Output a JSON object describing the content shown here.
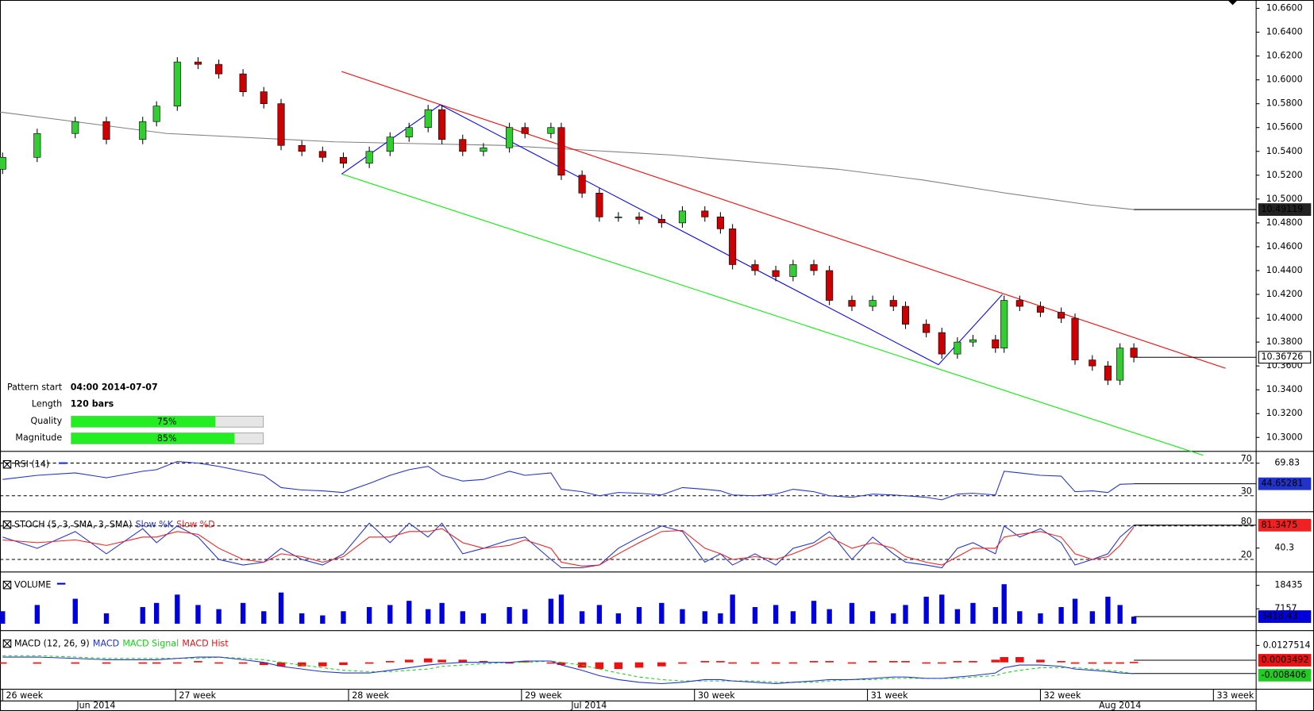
{
  "chart_data": [
    {
      "type": "candlestick",
      "xlim": [
        25.985,
        33.247
      ],
      "xticks": [
        {
          "value": 26,
          "label": "26 week"
        },
        {
          "value": 27,
          "label": "27 week"
        },
        {
          "value": 28,
          "label": "28 week"
        },
        {
          "value": 29,
          "label": "29 week"
        },
        {
          "value": 30,
          "label": "30 week"
        },
        {
          "value": 31,
          "label": "31 week"
        },
        {
          "value": 32,
          "label": "32 week"
        },
        {
          "value": 33,
          "label": "33 week"
        }
      ],
      "months": [
        {
          "value": 26.54,
          "label": "Jun 2014"
        },
        {
          "value": 29.39,
          "label": "Jul 2014"
        },
        {
          "value": 32.46,
          "label": "Aug 2014"
        }
      ],
      "ylim": [
        10.289,
        10.667
      ],
      "yticks": [
        {
          "value": 10.3,
          "label": "10.3000"
        },
        {
          "value": 10.32,
          "label": "10.3200"
        },
        {
          "value": 10.34,
          "label": "10.3400"
        },
        {
          "value": 10.36,
          "label": "10.3600"
        },
        {
          "value": 10.38,
          "label": "10.3800"
        },
        {
          "value": 10.4,
          "label": "10.4000"
        },
        {
          "value": 10.42,
          "label": "10.4200"
        },
        {
          "value": 10.44,
          "label": "10.4400"
        },
        {
          "value": 10.46,
          "label": "10.4600"
        },
        {
          "value": 10.48,
          "label": "10.4800"
        },
        {
          "value": 10.5,
          "label": "10.5000"
        },
        {
          "value": 10.52,
          "label": "10.5200"
        },
        {
          "value": 10.54,
          "label": "10.5400"
        },
        {
          "value": 10.56,
          "label": "10.5600"
        },
        {
          "value": 10.58,
          "label": "10.5800"
        },
        {
          "value": 10.6,
          "label": "10.6000"
        },
        {
          "value": 10.62,
          "label": "10.6200"
        },
        {
          "value": 10.64,
          "label": "10.6400"
        },
        {
          "value": 10.66,
          "label": "10.6600"
        }
      ],
      "up_color": "#33cc33",
      "down_color": "#cc0000",
      "x": [
        26.0,
        26.2,
        26.42,
        26.6,
        26.81,
        26.89,
        27.01,
        27.13,
        27.25,
        27.39,
        27.51,
        27.61,
        27.73,
        27.85,
        27.97,
        28.12,
        28.24,
        28.35,
        28.46,
        28.54,
        28.66,
        28.78,
        28.93,
        29.02,
        29.17,
        29.23,
        29.35,
        29.45,
        29.56,
        29.68,
        29.81,
        29.93,
        30.06,
        30.15,
        30.22,
        30.35,
        30.47,
        30.57,
        30.69,
        30.78,
        30.91,
        31.03,
        31.15,
        31.22,
        31.34,
        31.43,
        31.52,
        31.61,
        31.74,
        31.79,
        31.88,
        32.0,
        32.12,
        32.2,
        32.3,
        32.39,
        32.46,
        32.54
      ],
      "open": [
        10.525,
        10.535,
        10.555,
        10.565,
        10.55,
        10.565,
        10.578,
        10.615,
        10.613,
        10.605,
        10.59,
        10.58,
        10.545,
        10.54,
        10.535,
        10.53,
        10.54,
        10.552,
        10.56,
        10.575,
        10.55,
        10.54,
        10.543,
        10.56,
        10.555,
        10.56,
        10.52,
        10.505,
        10.485,
        10.485,
        10.483,
        10.48,
        10.49,
        10.485,
        10.475,
        10.445,
        10.44,
        10.435,
        10.445,
        10.44,
        10.415,
        10.41,
        10.415,
        10.41,
        10.395,
        10.388,
        10.37,
        10.38,
        10.382,
        10.375,
        10.415,
        10.41,
        10.405,
        10.4,
        10.365,
        10.36,
        10.348,
        10.375
      ],
      "high": [
        10.539,
        10.559,
        10.569,
        10.569,
        10.569,
        10.582,
        10.619,
        10.619,
        10.617,
        10.609,
        10.594,
        10.584,
        10.549,
        10.544,
        10.539,
        10.544,
        10.556,
        10.564,
        10.579,
        10.579,
        10.554,
        10.547,
        10.564,
        10.564,
        10.564,
        10.564,
        10.524,
        10.509,
        10.489,
        10.489,
        10.487,
        10.494,
        10.494,
        10.489,
        10.479,
        10.449,
        10.444,
        10.449,
        10.449,
        10.444,
        10.419,
        10.419,
        10.419,
        10.414,
        10.399,
        10.392,
        10.384,
        10.386,
        10.386,
        10.419,
        10.419,
        10.414,
        10.409,
        10.404,
        10.369,
        10.364,
        10.379,
        10.379
      ],
      "low": [
        10.521,
        10.531,
        10.551,
        10.546,
        10.546,
        10.561,
        10.574,
        10.609,
        10.601,
        10.586,
        10.576,
        10.541,
        10.536,
        10.531,
        10.526,
        10.526,
        10.536,
        10.548,
        10.556,
        10.546,
        10.536,
        10.536,
        10.539,
        10.551,
        10.551,
        10.516,
        10.501,
        10.481,
        10.481,
        10.479,
        10.476,
        10.476,
        10.481,
        10.471,
        10.441,
        10.436,
        10.431,
        10.431,
        10.436,
        10.411,
        10.406,
        10.406,
        10.406,
        10.391,
        10.384,
        10.366,
        10.366,
        10.376,
        10.371,
        10.371,
        10.406,
        10.401,
        10.396,
        10.361,
        10.356,
        10.344,
        10.344,
        10.363
      ],
      "close": [
        10.535,
        10.555,
        10.565,
        10.55,
        10.565,
        10.578,
        10.615,
        10.613,
        10.605,
        10.59,
        10.58,
        10.545,
        10.54,
        10.535,
        10.53,
        10.54,
        10.552,
        10.56,
        10.575,
        10.55,
        10.54,
        10.543,
        10.56,
        10.555,
        10.56,
        10.52,
        10.505,
        10.485,
        10.485,
        10.483,
        10.48,
        10.49,
        10.485,
        10.475,
        10.445,
        10.44,
        10.435,
        10.445,
        10.44,
        10.415,
        10.41,
        10.415,
        10.41,
        10.395,
        10.388,
        10.37,
        10.38,
        10.382,
        10.375,
        10.415,
        10.41,
        10.405,
        10.4,
        10.365,
        10.36,
        10.348,
        10.375,
        10.36726
      ],
      "series": [
        {
          "color": "#808080",
          "x": [
            25.985,
            26.95,
            27.92,
            28.89,
            29.86,
            30.83,
            31.32,
            31.8,
            32.29,
            32.54
          ],
          "values": [
            10.573,
            10.555,
            10.548,
            10.545,
            10.537,
            10.525,
            10.516,
            10.505,
            10.495,
            10.49119
          ]
        }
      ],
      "trendlines": [
        {
          "color": "#ff0000",
          "x": [
            27.96,
            33.07
          ],
          "y": [
            10.607,
            10.358
          ]
        },
        {
          "color": "#00ee00",
          "x": [
            27.96,
            32.94
          ],
          "y": [
            10.521,
            10.285
          ]
        },
        {
          "color": "#0000ff",
          "x": [
            27.96,
            28.53,
            31.41,
            31.78
          ],
          "y": [
            10.521,
            10.579,
            10.361,
            10.42
          ]
        }
      ]
    },
    {
      "type": "line",
      "title": "RSI (14)",
      "ylim": [
        11.5,
        83.3
      ],
      "levels": [
        70,
        30
      ],
      "yticks": [
        69.83
      ],
      "series": [
        {
          "color": "#2233cc",
          "values": [
            50,
            55,
            58,
            52,
            60,
            62,
            72,
            70,
            66,
            60,
            55,
            40,
            37,
            36,
            34,
            45,
            55,
            62,
            66,
            55,
            48,
            50,
            60,
            55,
            58,
            38,
            35,
            30,
            34,
            33,
            31,
            40,
            38,
            36,
            31,
            30,
            32,
            38,
            35,
            30,
            28,
            32,
            31,
            30,
            28,
            25,
            32,
            33,
            31,
            60,
            58,
            55,
            54,
            35,
            36,
            34,
            44,
            44.65281
          ]
        }
      ]
    },
    {
      "type": "line",
      "title": "STOCH (5, 3, SMA, 3, SMA)",
      "ylim": [
        -1,
        104
      ],
      "levels": [
        80,
        20
      ],
      "yticks": [
        40.3
      ],
      "series": [
        {
          "name": "Slow %K",
          "color": "#2233cc",
          "values": [
            60,
            40,
            70,
            30,
            75,
            50,
            80,
            60,
            20,
            10,
            15,
            40,
            20,
            10,
            30,
            85,
            50,
            85,
            60,
            85,
            30,
            40,
            55,
            60,
            20,
            5,
            5,
            10,
            40,
            60,
            80,
            70,
            15,
            30,
            10,
            30,
            10,
            40,
            50,
            70,
            20,
            60,
            30,
            15,
            10,
            5,
            40,
            50,
            30,
            80,
            60,
            75,
            50,
            10,
            20,
            30,
            60,
            81.3475
          ]
        },
        {
          "name": "Slow %D",
          "color": "#ee2222",
          "values": [
            55,
            50,
            55,
            45,
            60,
            60,
            70,
            65,
            40,
            20,
            15,
            30,
            25,
            15,
            25,
            60,
            60,
            70,
            70,
            75,
            50,
            40,
            45,
            55,
            40,
            15,
            8,
            10,
            30,
            50,
            70,
            72,
            40,
            30,
            20,
            25,
            20,
            30,
            45,
            60,
            40,
            50,
            40,
            25,
            15,
            10,
            25,
            40,
            40,
            60,
            65,
            70,
            60,
            30,
            20,
            25,
            45,
            78
          ]
        }
      ]
    },
    {
      "type": "bar",
      "title": "VOLUME",
      "ylim": [
        -2913,
        24477
      ],
      "yticks": [
        18435,
        7157
      ],
      "color": "#0000dd",
      "values": [
        6000,
        9000,
        12000,
        5000,
        8000,
        10000,
        14000,
        9000,
        7000,
        10000,
        6000,
        15000,
        5000,
        4000,
        6000,
        8000,
        9000,
        11000,
        7000,
        10000,
        6000,
        5000,
        8000,
        7000,
        12000,
        14000,
        6000,
        9000,
        5000,
        8000,
        10000,
        7000,
        6000,
        5000,
        14000,
        8000,
        9000,
        6000,
        11000,
        7000,
        10000,
        6000,
        5000,
        9000,
        13000,
        14000,
        7000,
        10000,
        8000,
        19000,
        6000,
        5000,
        8000,
        12000,
        6000,
        13000,
        9000,
        3418.43
      ]
    },
    {
      "type": "macd",
      "title": "MACD (12, 26, 9)",
      "ylim": [
        -0.0196,
        0.0233
      ],
      "yticks": [
        0.0127514
      ],
      "series": [
        {
          "name": "MACD",
          "color": "#2233cc",
          "values": [
            0.004,
            0.004,
            0.003,
            0.002,
            0.002,
            0.002,
            0.003,
            0.004,
            0.004,
            0.002,
            0.0,
            -0.003,
            -0.005,
            -0.007,
            -0.008,
            -0.008,
            -0.006,
            -0.004,
            -0.002,
            -0.001,
            0.0,
            0.0,
            0.0,
            0.001,
            0.001,
            -0.002,
            -0.006,
            -0.01,
            -0.013,
            -0.015,
            -0.016,
            -0.015,
            -0.013,
            -0.013,
            -0.014,
            -0.015,
            -0.016,
            -0.015,
            -0.014,
            -0.013,
            -0.013,
            -0.012,
            -0.011,
            -0.011,
            -0.012,
            -0.012,
            -0.011,
            -0.01,
            -0.008,
            -0.004,
            -0.002,
            -0.002,
            -0.003,
            -0.005,
            -0.006,
            -0.007,
            -0.008,
            -0.008406
          ]
        },
        {
          "name": "MACD Signal",
          "color": "#22cc22",
          "values": [
            0.005,
            0.005,
            0.004,
            0.003,
            0.003,
            0.003,
            0.003,
            0.003,
            0.004,
            0.003,
            0.002,
            0.0,
            -0.002,
            -0.004,
            -0.006,
            -0.007,
            -0.007,
            -0.006,
            -0.005,
            -0.003,
            -0.002,
            -0.001,
            0.0,
            0.0,
            0.001,
            0.0,
            -0.002,
            -0.005,
            -0.008,
            -0.011,
            -0.013,
            -0.014,
            -0.014,
            -0.014,
            -0.014,
            -0.014,
            -0.015,
            -0.015,
            -0.015,
            -0.014,
            -0.013,
            -0.013,
            -0.012,
            -0.012,
            -0.012,
            -0.012,
            -0.012,
            -0.011,
            -0.01,
            -0.008,
            -0.006,
            -0.004,
            -0.004,
            -0.004,
            -0.005,
            -0.006,
            -0.007,
            -0.0087
          ]
        },
        {
          "name": "MACD Hist",
          "color": "#ee1111",
          "values": [
            -0.001,
            -0.001,
            -0.001,
            -0.001,
            -0.001,
            -0.001,
            0,
            0.001,
            0,
            -0.001,
            -0.002,
            -0.003,
            -0.003,
            -0.003,
            -0.002,
            -0.001,
            0.001,
            0.002,
            0.003,
            0.002,
            0.002,
            0.001,
            0,
            0.001,
            0,
            -0.002,
            -0.004,
            -0.005,
            -0.005,
            -0.004,
            -0.003,
            -0.001,
            0.001,
            0.001,
            0,
            -0.001,
            -0.001,
            0,
            0.001,
            0.001,
            0,
            0.001,
            0.001,
            0.001,
            0,
            0,
            0.001,
            0.001,
            0.002,
            0.004,
            0.004,
            0.002,
            0.001,
            -0.001,
            -0.001,
            -0.001,
            -0.001,
            0.0003492
          ]
        }
      ]
    }
  ],
  "pattern": {
    "range": [
      0,
      100
    ],
    "color": "#22ee22",
    "rows": [
      {
        "label": "Pattern start",
        "value": "04:00 2014-07-07"
      },
      {
        "label": "Length",
        "value": "120 bars"
      },
      {
        "label": "Quality",
        "value": 75,
        "value_label": "75%"
      },
      {
        "label": "Magnitude",
        "value": 85,
        "value_label": "85%"
      }
    ]
  }
}
